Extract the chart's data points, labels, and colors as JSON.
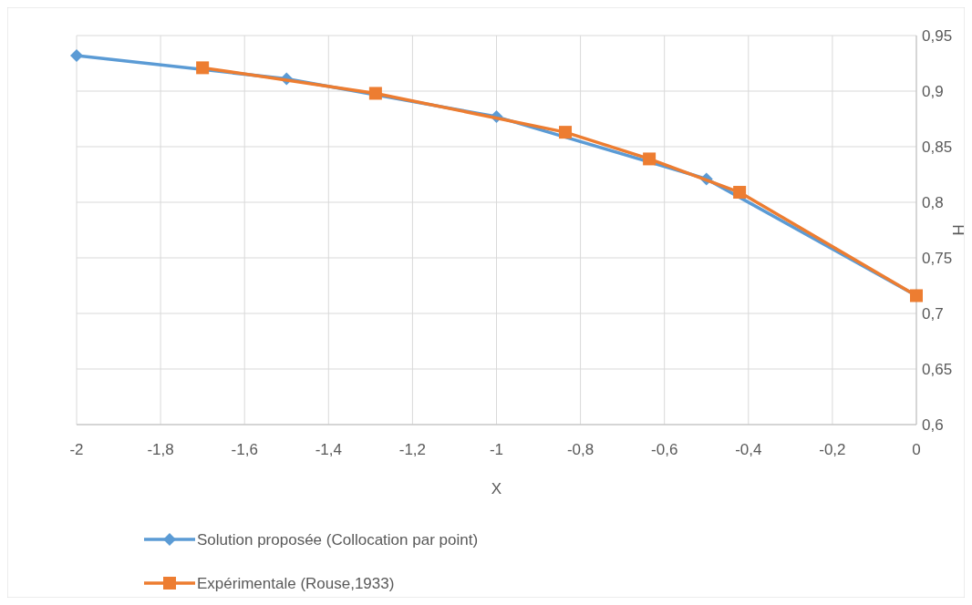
{
  "chart_data": {
    "type": "line",
    "xlabel": "X",
    "ylabel": "H",
    "xlim": [
      -2,
      0
    ],
    "xticks": [
      {
        "value": -2,
        "label": "-2"
      },
      {
        "value": -1.8,
        "label": "-1,8"
      },
      {
        "value": -1.6,
        "label": "-1,6"
      },
      {
        "value": -1.4,
        "label": "-1,4"
      },
      {
        "value": -1.2,
        "label": "-1,2"
      },
      {
        "value": -1,
        "label": "-1"
      },
      {
        "value": -0.8,
        "label": "-0,8"
      },
      {
        "value": -0.6,
        "label": "-0,6"
      },
      {
        "value": -0.4,
        "label": "-0,4"
      },
      {
        "value": -0.2,
        "label": "-0,2"
      },
      {
        "value": 0,
        "label": "0"
      }
    ],
    "ylim": [
      0.6,
      0.95
    ],
    "yticks": [
      {
        "value": 0.6,
        "label": "0,6"
      },
      {
        "value": 0.65,
        "label": "0,65"
      },
      {
        "value": 0.7,
        "label": "0,7"
      },
      {
        "value": 0.75,
        "label": "0,75"
      },
      {
        "value": 0.8,
        "label": "0,8"
      },
      {
        "value": 0.85,
        "label": "0,85"
      },
      {
        "value": 0.9,
        "label": "0,9"
      },
      {
        "value": 0.95,
        "label": "0,95"
      }
    ],
    "grid": true,
    "legend": "bottom",
    "line_style": "solid",
    "series": [
      {
        "name": "Solution proposée (Collocation par point)",
        "color": "#5b9bd5",
        "marker": "diamond",
        "x": [
          -2,
          -1.5,
          -1,
          -0.5,
          0
        ],
        "values": [
          0.932,
          0.911,
          0.877,
          0.821,
          0.716
        ]
      },
      {
        "name": "Expérimentale (Rouse,1933)",
        "color": "#ed7d31",
        "marker": "square",
        "x": [
          -1.7,
          -1.288,
          -0.836,
          -0.636,
          -0.421,
          0
        ],
        "values": [
          0.921,
          0.898,
          0.863,
          0.839,
          0.809,
          0.716
        ]
      }
    ]
  }
}
